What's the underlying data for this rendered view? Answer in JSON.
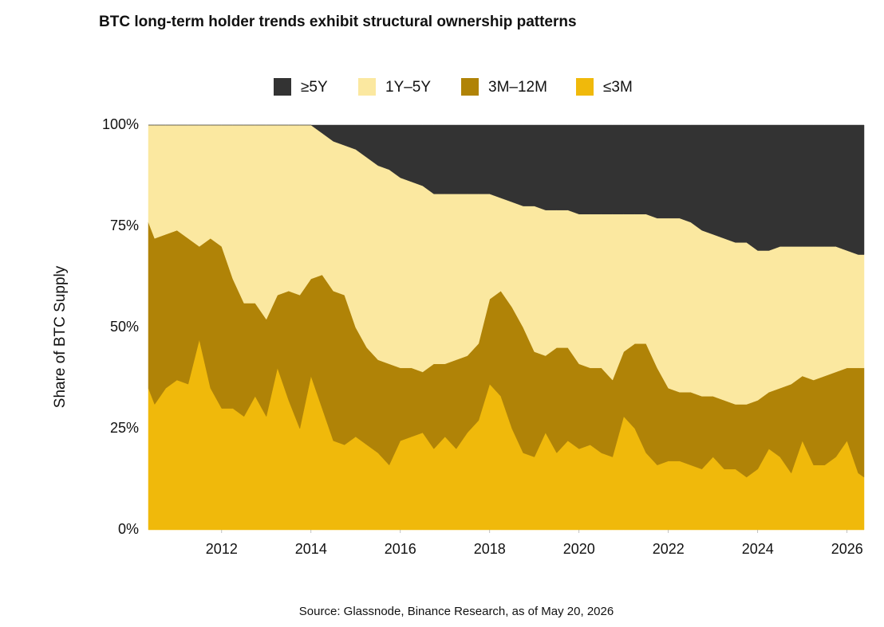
{
  "chart_data": {
    "type": "stacked-area",
    "title": "BTC long-term holder trends exhibit structural ownership patterns",
    "y_label": "Share of BTC Supply",
    "source": "Source: Glassnode, Binance Research, as of May 20, 2026",
    "legend": "top",
    "xlim": [
      2010.36,
      2026.38
    ],
    "xticks": [
      2012,
      2014,
      2016,
      2018,
      2020,
      2022,
      2024,
      2026
    ],
    "ylim": [
      0,
      100
    ],
    "yticks": [
      {
        "value": 0,
        "label": "0%"
      },
      {
        "value": 25,
        "label": "25%"
      },
      {
        "value": 50,
        "label": "50%"
      },
      {
        "value": 75,
        "label": "75%"
      },
      {
        "value": 100,
        "label": "100%"
      }
    ],
    "x": [
      2010.36,
      2010.5,
      2010.75,
      2011.0,
      2011.25,
      2011.5,
      2011.75,
      2012.0,
      2012.25,
      2012.5,
      2012.75,
      2013.0,
      2013.25,
      2013.5,
      2013.75,
      2014.0,
      2014.25,
      2014.5,
      2014.75,
      2015.0,
      2015.25,
      2015.5,
      2015.75,
      2016.0,
      2016.25,
      2016.5,
      2016.75,
      2017.0,
      2017.25,
      2017.5,
      2017.75,
      2018.0,
      2018.25,
      2018.5,
      2018.75,
      2019.0,
      2019.25,
      2019.5,
      2019.75,
      2020.0,
      2020.25,
      2020.5,
      2020.75,
      2021.0,
      2021.25,
      2021.5,
      2021.75,
      2022.0,
      2022.25,
      2022.5,
      2022.75,
      2023.0,
      2023.25,
      2023.5,
      2023.75,
      2024.0,
      2024.25,
      2024.5,
      2024.75,
      2025.0,
      2025.25,
      2025.5,
      2025.75,
      2026.0,
      2026.25,
      2026.38
    ],
    "series": [
      {
        "name": "≥5Y",
        "color": "#333333",
        "values": [
          0,
          0,
          0,
          0,
          0,
          0,
          0,
          0,
          0,
          0,
          0,
          0,
          0,
          0,
          0,
          0,
          2,
          4,
          5,
          6,
          8,
          10,
          11,
          13,
          14,
          15,
          17,
          17,
          17,
          17,
          17,
          17,
          18,
          19,
          20,
          20,
          21,
          21,
          21,
          22,
          22,
          22,
          22,
          22,
          22,
          22,
          23,
          23,
          23,
          24,
          26,
          27,
          28,
          29,
          29,
          31,
          31,
          30,
          30,
          30,
          30,
          30,
          30,
          31,
          32,
          32
        ]
      },
      {
        "name": "1Y–5Y",
        "color": "#fbe8a0",
        "values": [
          24,
          28,
          27,
          26,
          28,
          30,
          28,
          30,
          38,
          44,
          44,
          48,
          42,
          41,
          42,
          38,
          35,
          37,
          37,
          44,
          47,
          48,
          48,
          47,
          46,
          46,
          42,
          42,
          41,
          40,
          37,
          26,
          23,
          26,
          30,
          36,
          36,
          34,
          34,
          37,
          38,
          38,
          41,
          34,
          32,
          32,
          37,
          42,
          43,
          42,
          41,
          40,
          40,
          40,
          40,
          37,
          35,
          35,
          34,
          32,
          33,
          32,
          31,
          29,
          28,
          28
        ]
      },
      {
        "name": "3M–12M",
        "color": "#b08307",
        "values": [
          41,
          41,
          38,
          37,
          36,
          23,
          37,
          40,
          32,
          28,
          23,
          24,
          18,
          27,
          33,
          24,
          33,
          37,
          37,
          27,
          24,
          23,
          25,
          18,
          17,
          15,
          21,
          18,
          22,
          19,
          19,
          21,
          26,
          30,
          31,
          26,
          19,
          26,
          23,
          21,
          19,
          21,
          19,
          16,
          21,
          27,
          24,
          18,
          17,
          18,
          18,
          15,
          17,
          16,
          18,
          17,
          14,
          17,
          22,
          16,
          21,
          22,
          21,
          18,
          26,
          27
        ]
      },
      {
        "name": "≤3M",
        "color": "#f0b90b",
        "values": [
          35,
          31,
          35,
          37,
          36,
          47,
          35,
          30,
          30,
          28,
          33,
          28,
          40,
          32,
          25,
          38,
          30,
          22,
          21,
          23,
          21,
          19,
          16,
          22,
          23,
          24,
          20,
          23,
          20,
          24,
          27,
          36,
          33,
          25,
          19,
          18,
          24,
          19,
          22,
          20,
          21,
          19,
          18,
          28,
          25,
          19,
          16,
          17,
          17,
          16,
          15,
          18,
          15,
          15,
          13,
          15,
          20,
          18,
          14,
          22,
          16,
          16,
          18,
          22,
          14,
          13
        ]
      }
    ]
  }
}
